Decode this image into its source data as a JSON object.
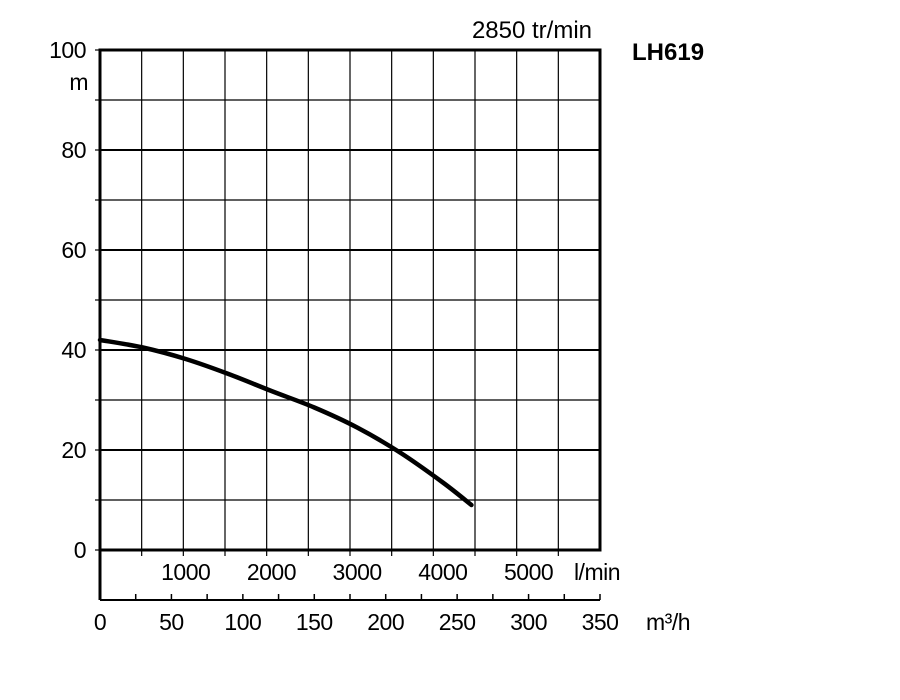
{
  "chart_data": {
    "type": "line",
    "title": "LH619",
    "subtitle": "2850 tr/min",
    "ylabel": "m",
    "xlabel": "m³/h",
    "xlabel_secondary": "l/min",
    "ylim": [
      0,
      100
    ],
    "xlim": [
      0,
      350
    ],
    "y_ticks": [
      "0",
      "20",
      "40",
      "60",
      "80",
      "100"
    ],
    "x_ticks": [
      "0",
      "50",
      "100",
      "150",
      "200",
      "250",
      "300",
      "350"
    ],
    "x_ticks_secondary": [
      "1000",
      "2000",
      "3000",
      "4000",
      "5000"
    ],
    "grid": true,
    "series": [
      {
        "x": [
          0,
          30,
          60,
          90,
          120,
          150,
          180,
          210,
          240,
          260
        ],
        "y": [
          42,
          40.5,
          38.2,
          35.2,
          31.8,
          28.5,
          24.5,
          19.5,
          13.5,
          9
        ]
      }
    ]
  }
}
